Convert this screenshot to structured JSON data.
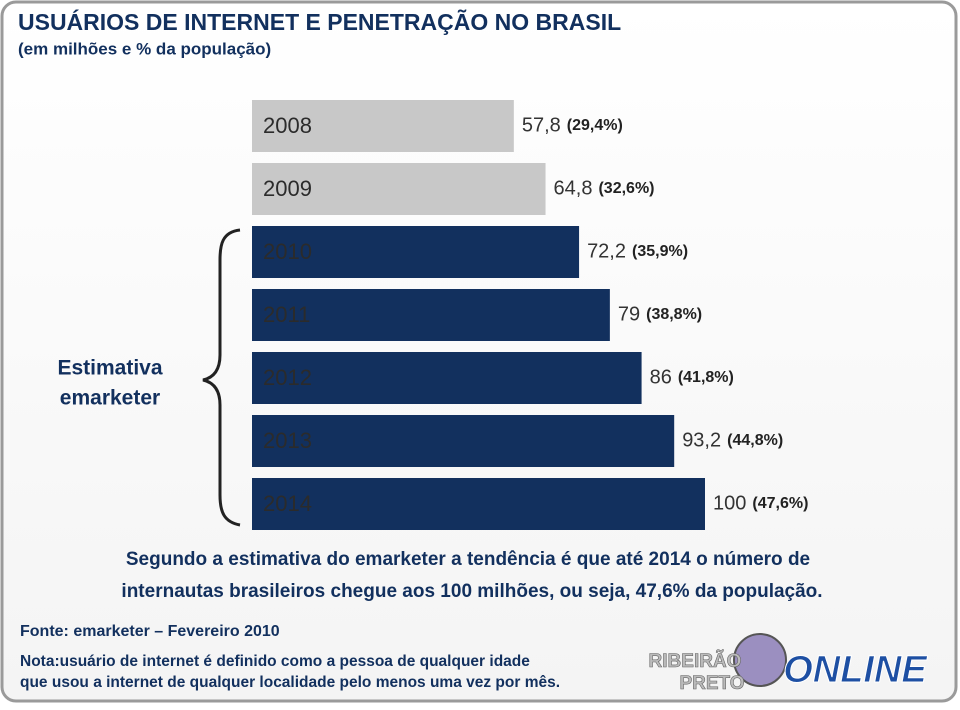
{
  "chart_data": {
    "type": "bar",
    "orientation": "horizontal",
    "title": "USUÁRIOS DE INTERNET E PENETRAÇÃO NO BRASIL",
    "subtitle": "(em milhões e % da população)",
    "categories": [
      "2008",
      "2009",
      "2010",
      "2011",
      "2012",
      "2013",
      "2014"
    ],
    "values": [
      57.8,
      64.8,
      72.2,
      79,
      86,
      93.2,
      100
    ],
    "value_labels": [
      "57,8",
      "64,8",
      "72,2",
      "79",
      "86",
      "93,2",
      "100"
    ],
    "colors": [
      "#c8c8c8",
      "#c8c8c8",
      "#12305e",
      "#12305e",
      "#12305e",
      "#12305e",
      "#12305e"
    ],
    "percent_values": [
      29.4,
      32.6,
      35.9,
      38.8,
      41.8,
      44.8,
      47.6
    ],
    "percent_labels": [
      "(29,4%)",
      "(32,6%)",
      "(35,9%)",
      "(38,8%)",
      "(41,8%)",
      "(44,8%)",
      "(47,6%)"
    ],
    "annotation": [
      "Estimativa",
      "emarketer"
    ],
    "note": [
      "Segundo a estimativa do emarketer a tendência é que até 2014 o número de",
      "internautas brasileiros chegue aos 100 milhões, ou seja, 47,6% da população."
    ],
    "source": "Fonte: emarketer – Fevereiro 2010",
    "footnote": [
      "Nota:usuário de internet é definido como a pessoa de qualquer idade",
      "que usou a internet de qualquer localidade pelo menos uma vez por mês."
    ],
    "logo": [
      "RIBEIRÃO",
      "PRETO",
      "ONLINE"
    ]
  }
}
